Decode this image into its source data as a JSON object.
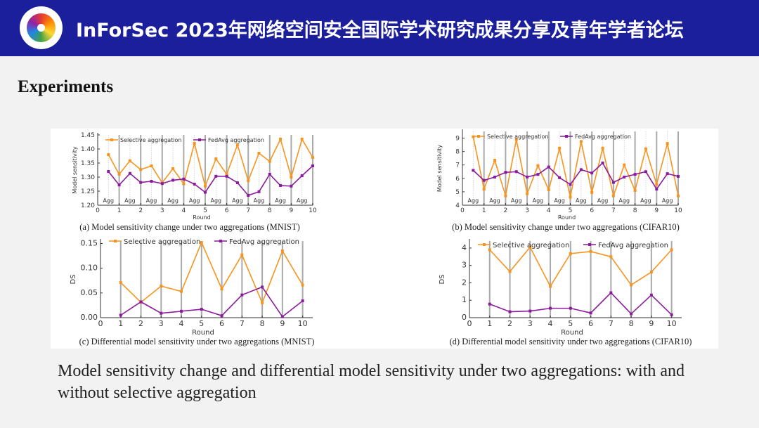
{
  "header": {
    "title": "InForSec 2023年网络空间安全国际学术研究成果分享及青年学者论坛",
    "logo_text": "InForSec",
    "background": "#1c1f9b"
  },
  "section_title": "Experiments",
  "caption": "Model sensitivity change and differential model sensitivity under two aggregations: with and without selective aggregation",
  "colors": {
    "selective": "#f7941d",
    "fedavg": "#8b1a9c"
  },
  "chart_data": [
    {
      "type": "line",
      "caption": "(a) Model sensitivity change under two aggregations (MNIST)",
      "xlabel": "Round",
      "ylabel": "Model sensitivity",
      "xlim": [
        0,
        10
      ],
      "ylim": [
        1.2,
        1.45
      ],
      "xticks": [
        "0",
        "1",
        "2",
        "3",
        "4",
        "5",
        "6",
        "7",
        "8",
        "9",
        "10"
      ],
      "yticks": [
        "1.20",
        "1.25",
        "1.30",
        "1.35",
        "1.40",
        "1.45"
      ],
      "annotation": "Agg",
      "legend": "top",
      "x": [
        0.5,
        1,
        1.5,
        2,
        2.5,
        3,
        3.5,
        4,
        4.5,
        5,
        5.5,
        6,
        6.5,
        7,
        7.5,
        8,
        8.5,
        9,
        9.5,
        10
      ],
      "series": [
        {
          "name": "Selective aggregation",
          "values": [
            1.38,
            1.31,
            1.358,
            1.327,
            1.34,
            1.28,
            1.33,
            1.276,
            1.42,
            1.268,
            1.365,
            1.31,
            1.415,
            1.287,
            1.385,
            1.356,
            1.435,
            1.3,
            1.435,
            1.37
          ]
        },
        {
          "name": "FedAvg aggregation",
          "values": [
            1.32,
            1.272,
            1.313,
            1.281,
            1.285,
            1.277,
            1.289,
            1.293,
            1.275,
            1.246,
            1.303,
            1.303,
            1.28,
            1.235,
            1.248,
            1.31,
            1.27,
            1.268,
            1.305,
            1.34
          ]
        }
      ]
    },
    {
      "type": "line",
      "caption": "(b) Model sensitivity change under two aggregations (CIFAR10)",
      "xlabel": "Round",
      "ylabel": "Model sensitivity",
      "xlim": [
        0,
        10
      ],
      "ylim": [
        4,
        9.5
      ],
      "xticks": [
        "0",
        "1",
        "2",
        "3",
        "4",
        "5",
        "6",
        "7",
        "8",
        "9",
        "10"
      ],
      "yticks": [
        "4",
        "5",
        "6",
        "7",
        "8",
        "9"
      ],
      "annotation": "Agg",
      "legend": "top",
      "x": [
        0.5,
        1,
        1.5,
        2,
        2.5,
        3,
        3.5,
        4,
        4.5,
        5,
        5.5,
        6,
        6.5,
        7,
        7.5,
        8,
        8.5,
        9,
        9.5,
        10
      ],
      "series": [
        {
          "name": "Selective aggregation",
          "values": [
            9.1,
            5.2,
            7.35,
            4.7,
            8.9,
            4.85,
            6.95,
            5.15,
            8.25,
            4.6,
            8.75,
            4.95,
            8.25,
            4.7,
            7.0,
            5.1,
            8.2,
            5.55,
            8.6,
            4.7
          ]
        },
        {
          "name": "FedAvg aggregation",
          "values": [
            6.6,
            5.85,
            6.1,
            6.45,
            6.5,
            6.1,
            6.3,
            6.85,
            6.05,
            5.55,
            6.65,
            6.4,
            7.15,
            5.7,
            6.1,
            6.3,
            6.5,
            5.2,
            6.35,
            6.15
          ]
        }
      ]
    },
    {
      "type": "line",
      "caption": "(c) Differential model sensitivity under two aggregations (MNIST)",
      "xlabel": "Round",
      "ylabel": "DS",
      "xlim": [
        0,
        10.5
      ],
      "ylim": [
        0,
        0.155
      ],
      "xticks": [
        "0",
        "1",
        "2",
        "3",
        "4",
        "5",
        "6",
        "7",
        "8",
        "9",
        "10"
      ],
      "yticks": [
        "0.00",
        "0.05",
        "0.10",
        "0.15"
      ],
      "legend": "top",
      "x": [
        1,
        2,
        3,
        4,
        5,
        6,
        7,
        8,
        9,
        10
      ],
      "series": [
        {
          "name": "Selective aggregation",
          "values": [
            0.071,
            0.031,
            0.064,
            0.053,
            0.152,
            0.058,
            0.127,
            0.03,
            0.135,
            0.066
          ]
        },
        {
          "name": "FedAvg aggregation",
          "values": [
            0.005,
            0.032,
            0.009,
            0.013,
            0.017,
            0.004,
            0.046,
            0.062,
            0.002,
            0.034
          ]
        }
      ]
    },
    {
      "type": "line",
      "caption": "(d) Differential model sensitivity under two aggregations (CIFAR10)",
      "xlabel": "Round",
      "ylabel": "DS",
      "xlim": [
        0,
        10.5
      ],
      "ylim": [
        0,
        4.4
      ],
      "xticks": [
        "0",
        "1",
        "2",
        "3",
        "4",
        "5",
        "6",
        "7",
        "8",
        "9",
        "10"
      ],
      "yticks": [
        "0",
        "1",
        "2",
        "3",
        "4"
      ],
      "legend": "top",
      "x": [
        1,
        2,
        3,
        4,
        5,
        6,
        7,
        8,
        9,
        10
      ],
      "series": [
        {
          "name": "Selective aggregation",
          "values": [
            3.9,
            2.65,
            4.05,
            1.8,
            3.68,
            3.8,
            3.5,
            1.88,
            2.62,
            3.9
          ]
        },
        {
          "name": "FedAvg aggregation",
          "values": [
            0.78,
            0.34,
            0.38,
            0.54,
            0.54,
            0.27,
            1.43,
            0.22,
            1.3,
            0.17
          ]
        }
      ]
    }
  ]
}
